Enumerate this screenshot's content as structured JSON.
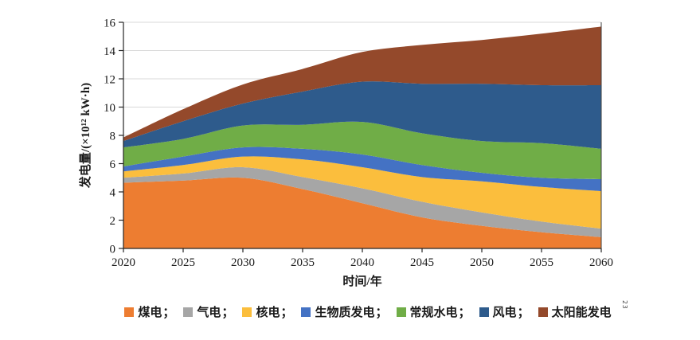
{
  "artifact_text": "23",
  "chart_data": {
    "type": "area",
    "stacked": true,
    "title": "",
    "xlabel": "时间/年",
    "ylabel": "发电量/(×10¹² kW·h)",
    "x": [
      2020,
      2025,
      2030,
      2035,
      2040,
      2045,
      2050,
      2055,
      2060
    ],
    "ylim": [
      0,
      16
    ],
    "ytick_step": 2,
    "grid": "horizontal",
    "gridline_color": "#d9d9d9",
    "axis_color": "#262626",
    "legend_position": "bottom",
    "legend_separator": "；",
    "series": [
      {
        "key": "coal",
        "name": "煤电",
        "color": "#ED7D31",
        "values": [
          4.65,
          4.8,
          5.0,
          4.2,
          3.2,
          2.2,
          1.6,
          1.15,
          0.8
        ]
      },
      {
        "key": "gas",
        "name": "气电",
        "color": "#A6A6A6",
        "values": [
          0.35,
          0.5,
          0.75,
          0.85,
          1.05,
          1.1,
          0.95,
          0.75,
          0.6
        ]
      },
      {
        "key": "nuclear",
        "name": "核电",
        "color": "#FBBE3D",
        "values": [
          0.45,
          0.6,
          0.75,
          1.25,
          1.5,
          1.75,
          2.2,
          2.45,
          2.65
        ]
      },
      {
        "key": "biomass",
        "name": "生物质发电",
        "color": "#4472C4",
        "values": [
          0.35,
          0.6,
          0.65,
          0.75,
          0.9,
          0.85,
          0.6,
          0.65,
          0.85
        ]
      },
      {
        "key": "hydro",
        "name": "常规水电",
        "color": "#70AD47",
        "values": [
          1.35,
          1.25,
          1.55,
          1.7,
          2.3,
          2.25,
          2.25,
          2.45,
          2.15
        ]
      },
      {
        "key": "wind",
        "name": "风电",
        "color": "#2E5B8C",
        "values": [
          0.45,
          1.25,
          1.55,
          2.35,
          2.85,
          3.5,
          4.05,
          4.1,
          4.5
        ]
      },
      {
        "key": "solar",
        "name": "太阳能发电",
        "color": "#94492B",
        "values": [
          0.25,
          0.85,
          1.35,
          1.6,
          2.1,
          2.75,
          3.1,
          3.65,
          4.15
        ]
      }
    ]
  }
}
